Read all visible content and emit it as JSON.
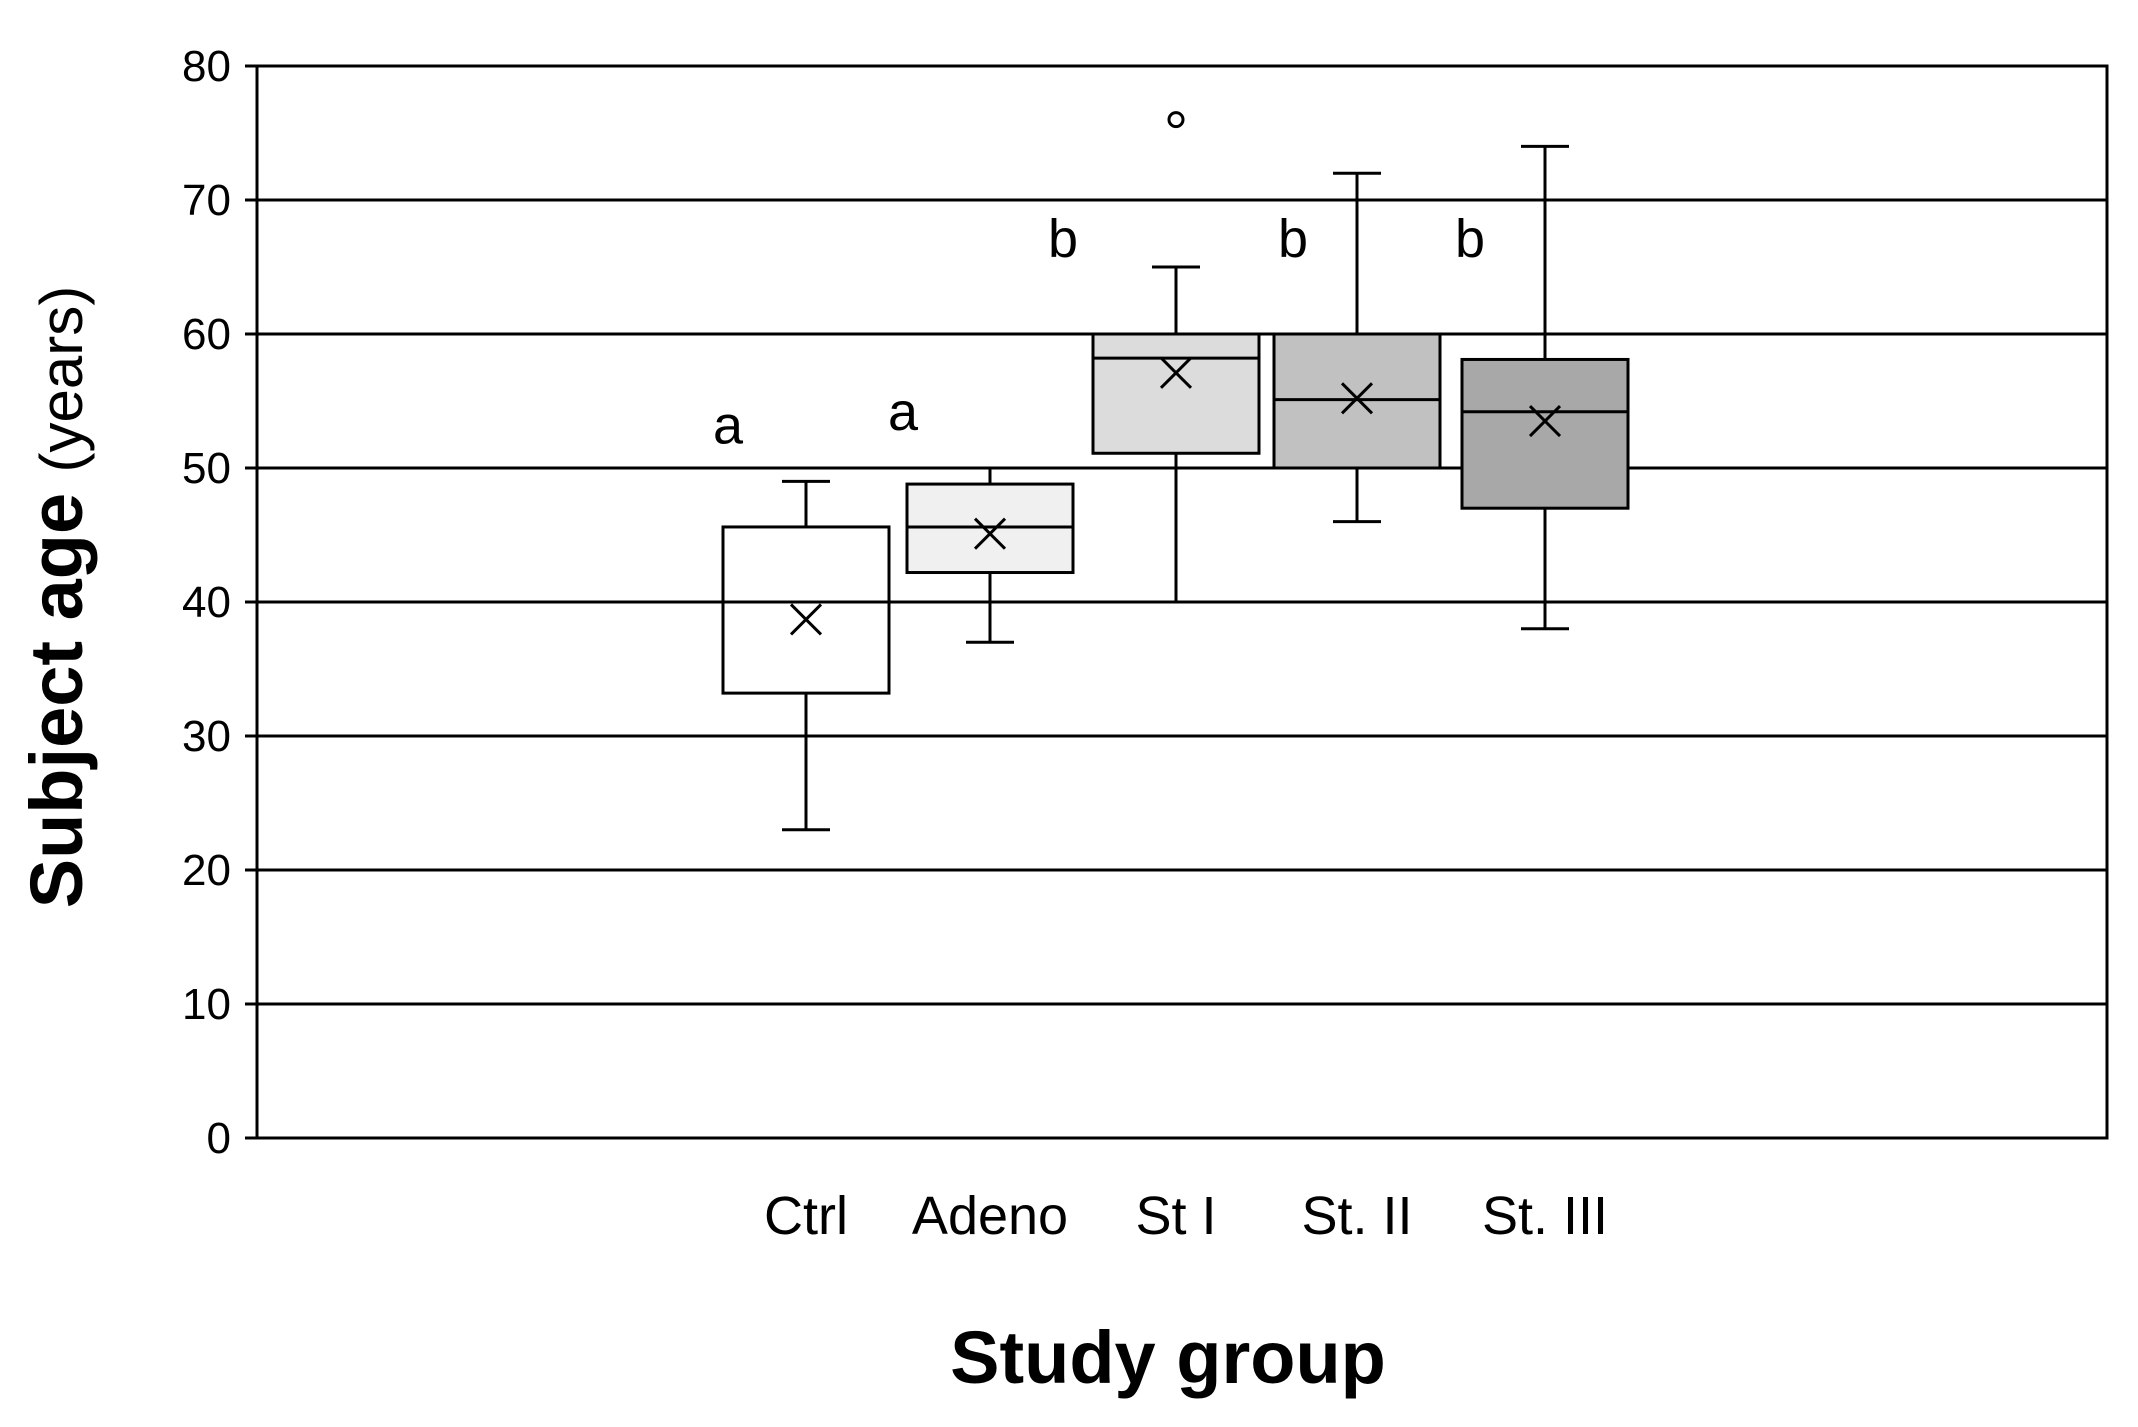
{
  "chart_data": {
    "type": "box",
    "xlabel": "Study group",
    "ylabel": "Subject age",
    "ylabel_unit": "(years)",
    "ylim": [
      0,
      80
    ],
    "yticks": [
      0,
      10,
      20,
      30,
      40,
      50,
      60,
      70,
      80
    ],
    "grid": true,
    "legend": "none",
    "categories": [
      "Ctrl",
      "Adeno",
      "St I",
      "St. II",
      "St. III"
    ],
    "boxes": [
      {
        "category": "Ctrl",
        "whisker_low": 23,
        "q1": 33.2,
        "median": 40,
        "q3": 45.6,
        "whisker_high": 49,
        "mean": 38.7,
        "outliers": [],
        "significance": "a",
        "fill": "#ffffff"
      },
      {
        "category": "Adeno",
        "whisker_low": 37,
        "q1": 42.2,
        "median": 45.6,
        "q3": 48.8,
        "whisker_high": 50,
        "mean": 45.1,
        "outliers": [],
        "significance": "a",
        "fill": "#f0f0f0"
      },
      {
        "category": "St I",
        "whisker_low": 40,
        "q1": 51.1,
        "median": 58.2,
        "q3": 60,
        "whisker_high": 65,
        "mean": 57.1,
        "outliers": [
          76
        ],
        "significance": "b",
        "fill": "#dcdcdc"
      },
      {
        "category": "St. II",
        "whisker_low": 46,
        "q1": 50,
        "median": 55.1,
        "q3": 60,
        "whisker_high": 72,
        "mean": 55.2,
        "outliers": [],
        "significance": "b",
        "fill": "#c1c1c1"
      },
      {
        "category": "St. III",
        "whisker_low": 38,
        "q1": 47,
        "median": 54.2,
        "q3": 58.1,
        "whisker_high": 74,
        "mean": 53.5,
        "outliers": [],
        "significance": "b",
        "fill": "#a8a8a8"
      }
    ]
  }
}
